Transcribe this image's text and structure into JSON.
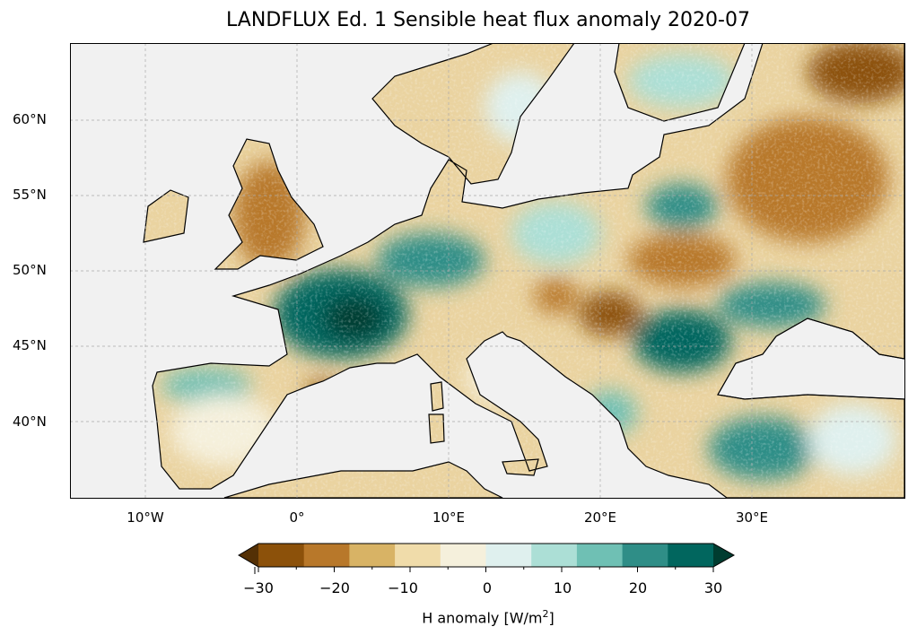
{
  "title": "LANDFLUX Ed. 1 Sensible heat flux anomaly 2020-07",
  "lat_labels": [
    "60°N",
    "55°N",
    "50°N",
    "45°N",
    "40°N"
  ],
  "lon_labels": [
    "10°W",
    "0°",
    "10°E",
    "20°E",
    "30°E"
  ],
  "colorbar": {
    "ticks": [
      "−30",
      "−20",
      "−10",
      "0",
      "10",
      "20",
      "30"
    ],
    "label": "H anomaly [W/m",
    "label_sup": "2",
    "label_end": "]",
    "colors": [
      "#543005",
      "#8c510a",
      "#b8782a",
      "#d8b365",
      "#f0dcaa",
      "#f5f0dc",
      "#dff0ee",
      "#acdfd6",
      "#6fc0b4",
      "#2f8e87",
      "#01665e",
      "#003c30"
    ],
    "range": [
      -30,
      30
    ],
    "extend": "both"
  },
  "extent": {
    "lon": [
      -15,
      40
    ],
    "lat": [
      35,
      65
    ]
  }
}
